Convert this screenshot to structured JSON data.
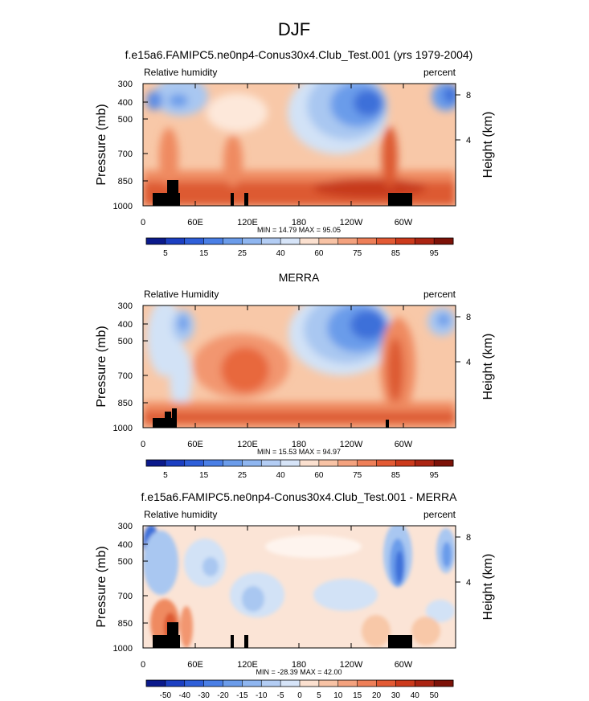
{
  "figure": {
    "title": "DJF"
  },
  "chart_data": [
    {
      "type": "heatmap",
      "title": "f.e15a6.FAMIPC5.ne0np4-Conus30x4.Club_Test.001 (yrs 1979-2004)",
      "left_label": "Relative humidity",
      "right_label": "percent",
      "ylabel": "Pressure (mb)",
      "right_axis_label": "Height (km)",
      "x_ticks": [
        "0",
        "60E",
        "120E",
        "180",
        "120W",
        "60W"
      ],
      "y_ticks": [
        "300",
        "400",
        "500",
        "700",
        "850",
        "1000"
      ],
      "right_ticks": [
        "8",
        "4"
      ],
      "stats": "MIN =  14.79  MAX =  95.05",
      "min": 14.79,
      "max": 95.05,
      "colorbar_labels": [
        "5",
        "15",
        "25",
        "40",
        "60",
        "75",
        "85",
        "95"
      ],
      "ylim": [
        1000,
        300
      ]
    },
    {
      "type": "heatmap",
      "title": "MERRA",
      "left_label": "Relative Humidity",
      "right_label": "percent",
      "ylabel": "Pressure (mb)",
      "right_axis_label": "Height (km)",
      "x_ticks": [
        "0",
        "60E",
        "120E",
        "180",
        "120W",
        "60W"
      ],
      "y_ticks": [
        "300",
        "400",
        "500",
        "700",
        "850",
        "1000"
      ],
      "right_ticks": [
        "8",
        "4"
      ],
      "stats": "MIN =  15.53  MAX =  94.97",
      "min": 15.53,
      "max": 94.97,
      "colorbar_labels": [
        "5",
        "15",
        "25",
        "40",
        "60",
        "75",
        "85",
        "95"
      ],
      "ylim": [
        1000,
        300
      ]
    },
    {
      "type": "heatmap",
      "title": "f.e15a6.FAMIPC5.ne0np4-Conus30x4.Club_Test.001 - MERRA",
      "left_label": "Relative humidity",
      "right_label": "percent",
      "ylabel": "Pressure (mb)",
      "right_axis_label": "Height (km)",
      "x_ticks": [
        "0",
        "60E",
        "120E",
        "180",
        "120W",
        "60W"
      ],
      "y_ticks": [
        "300",
        "400",
        "500",
        "700",
        "850",
        "1000"
      ],
      "right_ticks": [
        "8",
        "4"
      ],
      "stats": "MIN = -28.39  MAX =  42.00",
      "min": -28.39,
      "max": 42.0,
      "colorbar_labels": [
        "-50",
        "-40",
        "-30",
        "-20",
        "-15",
        "-10",
        "-5",
        "0",
        "5",
        "10",
        "15",
        "20",
        "30",
        "40",
        "50"
      ],
      "ylim": [
        1000,
        300
      ]
    }
  ]
}
